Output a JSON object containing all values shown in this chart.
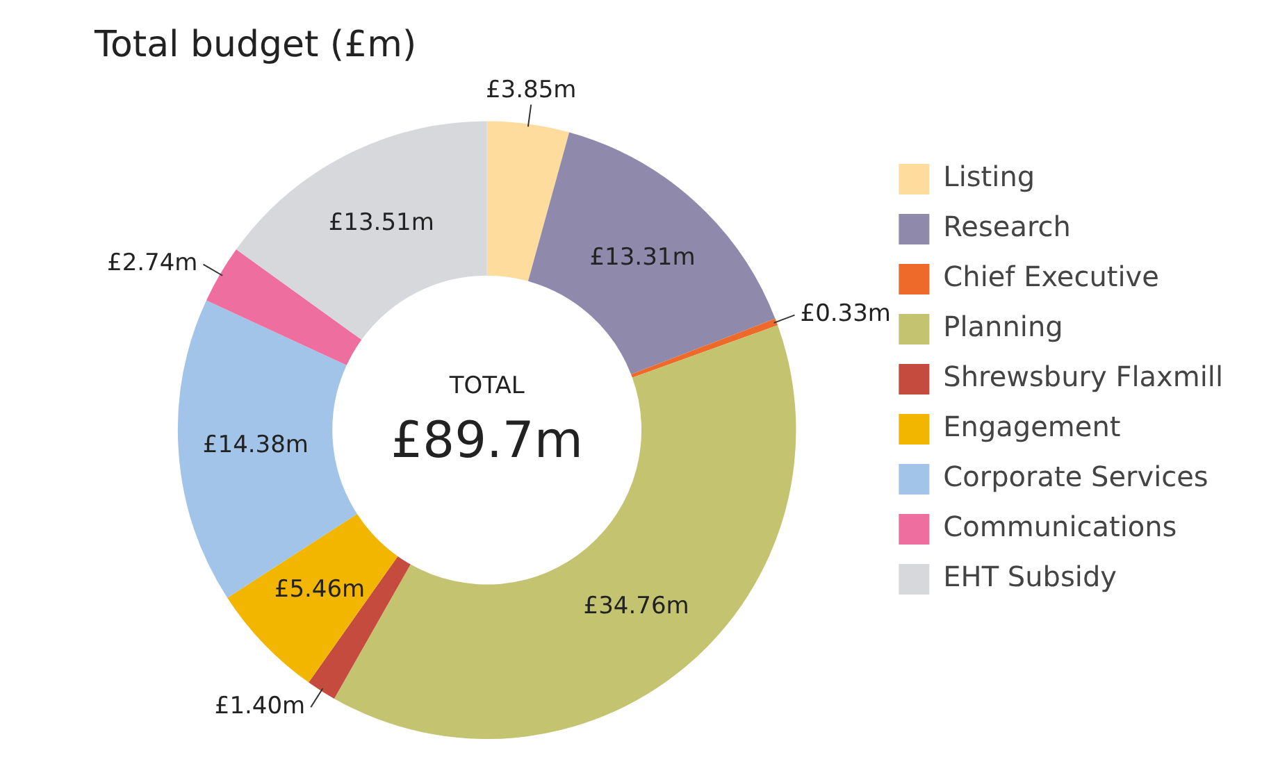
{
  "chart_data": {
    "type": "donut",
    "title": "Total budget (£m)",
    "categories": [
      "Listing",
      "Research",
      "Chief Executive",
      "Planning",
      "Shrewsbury Flaxmill",
      "Engagement",
      "Corporate Services",
      "Communications",
      "EHT Subsidy"
    ],
    "values": [
      3.85,
      13.31,
      0.33,
      34.76,
      1.4,
      5.46,
      14.38,
      2.74,
      13.51
    ],
    "value_labels": [
      "£3.85m",
      "£13.31m",
      "£0.33m",
      "£34.76m",
      "£1.40m",
      "£5.46m",
      "£14.38m",
      "£2.74m",
      "£13.51m"
    ],
    "colors": [
      "#fddc9e",
      "#8f8aab",
      "#ee6a2a",
      "#c3c370",
      "#c64b3f",
      "#f2b600",
      "#a2c4e8",
      "#ee6f9f",
      "#d6d8dc"
    ],
    "annotations": [
      "TOTAL",
      "£89.7m"
    ],
    "legend": "right"
  }
}
